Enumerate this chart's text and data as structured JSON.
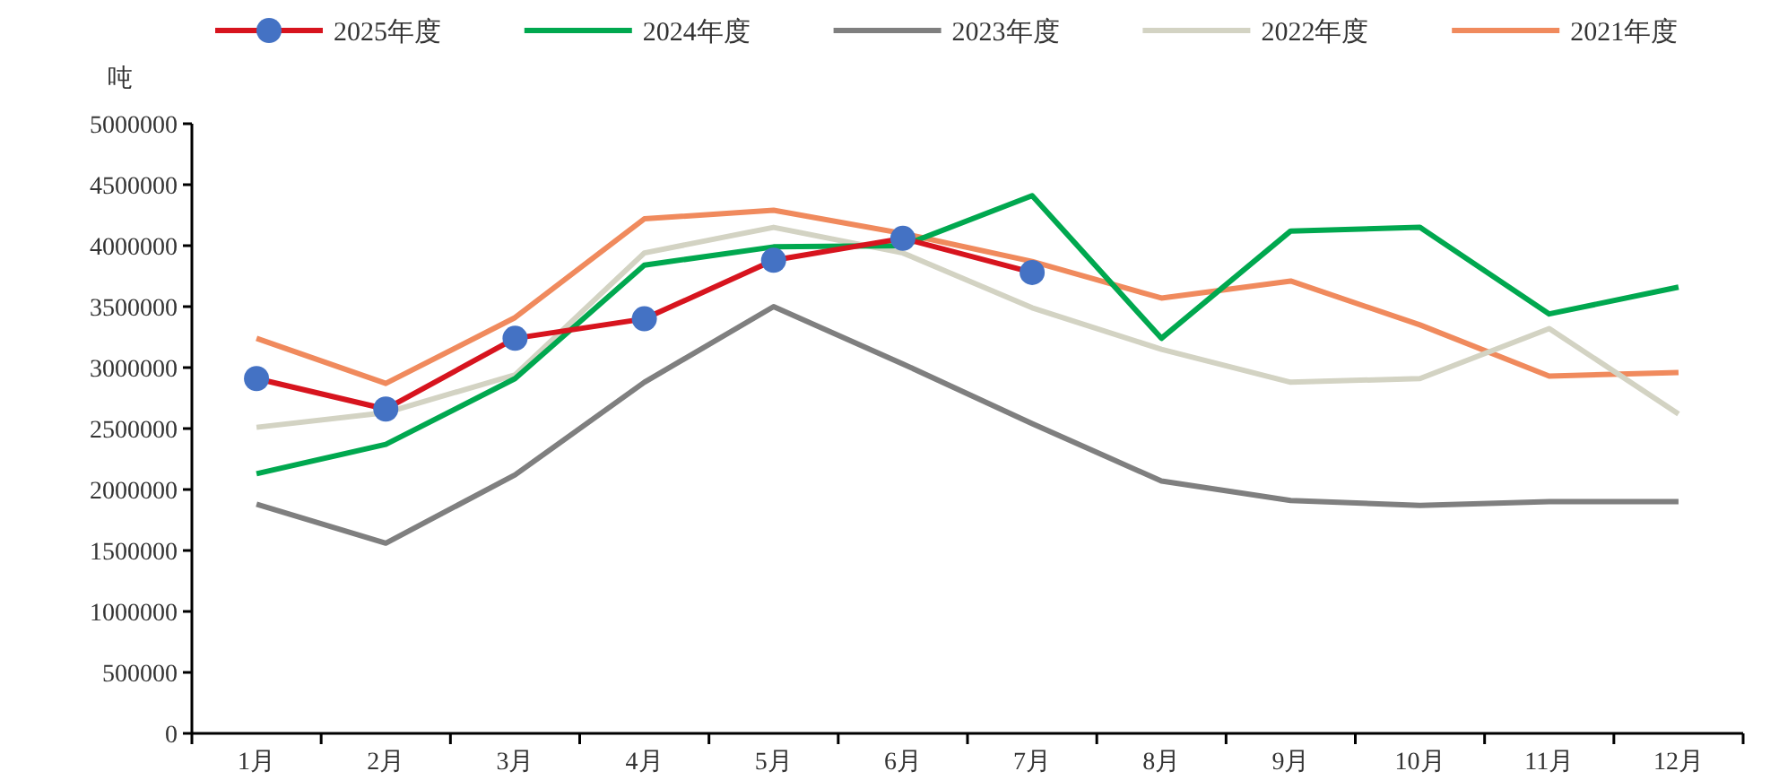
{
  "chart_data": {
    "type": "line",
    "ylabel": "吨",
    "categories": [
      "1月",
      "2月",
      "3月",
      "4月",
      "5月",
      "6月",
      "7月",
      "8月",
      "9月",
      "10月",
      "11月",
      "12月"
    ],
    "ylim": [
      0,
      5000000
    ],
    "yticks": [
      0,
      500000,
      1000000,
      1500000,
      2000000,
      2500000,
      3000000,
      3500000,
      4000000,
      4500000,
      5000000
    ],
    "grid": false,
    "legend": "top",
    "series": [
      {
        "name": "2025年度",
        "color": "#d7141e",
        "marker": "circle",
        "colors": [
          "#4472c4",
          "#4472c4",
          "#4472c4",
          "#4472c4",
          "#4472c4",
          "#4472c4",
          "#4472c4",
          null,
          null,
          null,
          null,
          null
        ],
        "values": [
          2910000,
          2660000,
          3240000,
          3400000,
          3880000,
          4060000,
          3780000,
          null,
          null,
          null,
          null,
          null
        ]
      },
      {
        "name": "2024年度",
        "color": "#00a84f",
        "values": [
          2130000,
          2370000,
          2910000,
          3840000,
          3990000,
          4000000,
          4410000,
          3240000,
          4120000,
          4150000,
          3440000,
          3660000
        ]
      },
      {
        "name": "2023年度",
        "color": "#7f7f7f",
        "values": [
          1880000,
          1560000,
          2120000,
          2880000,
          3500000,
          3030000,
          2540000,
          2070000,
          1910000,
          1870000,
          1900000,
          1900000
        ]
      },
      {
        "name": "2022年度",
        "color": "#d3d3c3",
        "values": [
          2510000,
          2630000,
          2940000,
          3940000,
          4150000,
          3940000,
          3490000,
          3150000,
          2880000,
          2910000,
          3320000,
          2620000
        ]
      },
      {
        "name": "2021年度",
        "color": "#f08a5d",
        "values": [
          3240000,
          2870000,
          3410000,
          4220000,
          4290000,
          4100000,
          3870000,
          3570000,
          3710000,
          3350000,
          2930000,
          2960000
        ]
      }
    ]
  }
}
